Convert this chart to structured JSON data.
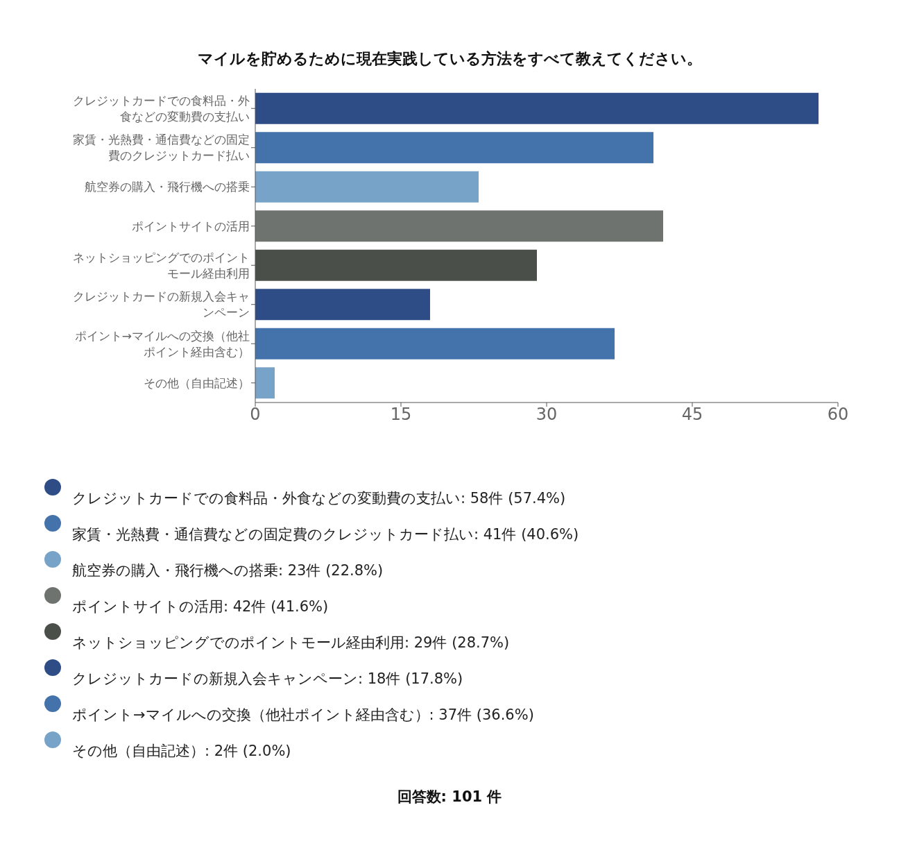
{
  "chart_data": {
    "type": "bar",
    "orientation": "horizontal",
    "title": "マイルを貯めるために現在実践している方法をすべて教えてください。",
    "categories": [
      "クレジットカードでの食料品・外食などの変動費の支払い",
      "家賃・光熱費・通信費などの固定費のクレジットカード払い",
      "航空券の購入・飛行機への搭乗",
      "ポイントサイトの活用",
      "ネットショッピングでのポイントモール経由利用",
      "クレジットカードの新規入会キャンペーン",
      "ポイント→マイルへの交換（他社ポイント経由含む）",
      "その他（自由記述）"
    ],
    "values": [
      58,
      41,
      23,
      42,
      29,
      18,
      37,
      2
    ],
    "colors": [
      "#2e4d87",
      "#4472ab",
      "#78a3c8",
      "#6e736f",
      "#4a4f4a",
      "#2e4d87",
      "#4472ab",
      "#78a3c8"
    ],
    "xlim": [
      0,
      60
    ],
    "xticks": [
      0,
      15,
      30,
      45,
      60
    ],
    "annotations": [
      "クレジットカードでの食料品・外食などの変動費の支払い: 58件 (57.4%)",
      "家賃・光熱費・通信費などの固定費のクレジットカード払い: 41件 (40.6%)",
      "航空券の購入・飛行機への搭乗: 23件 (22.8%)",
      "ポイントサイトの活用: 42件 (41.6%)",
      "ネットショッピングでのポイントモール経由利用: 29件 (28.7%)",
      "クレジットカードの新規入会キャンペーン: 18件 (17.8%)",
      "ポイント→マイルへの交換（他社ポイント経由含む）: 37件 (36.6%)",
      "その他（自由記述）: 2件 (2.0%)",
      "回答数: 101 件"
    ]
  }
}
